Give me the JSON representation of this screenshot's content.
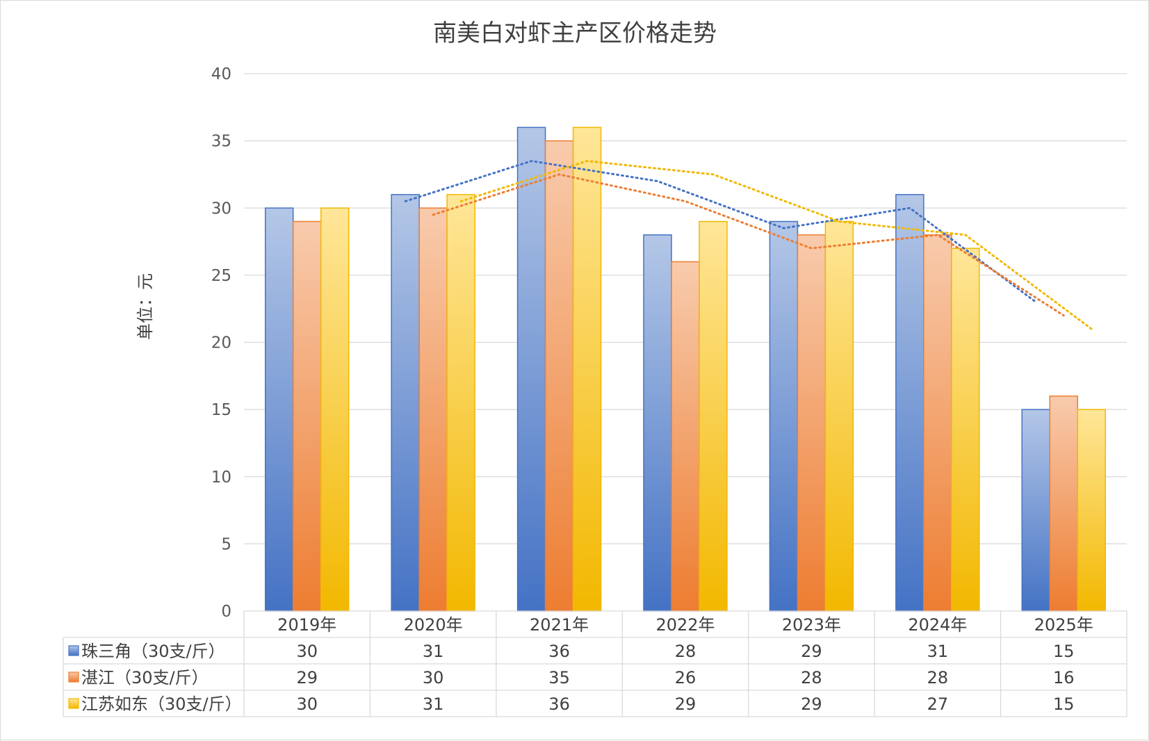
{
  "chart_data": {
    "type": "bar",
    "title": "南美白对虾主产区价格走势",
    "ylabel": "单位：元",
    "xlabel": "",
    "ylim": [
      0,
      40
    ],
    "y_ticks": [
      "0",
      "5",
      "10",
      "15",
      "20",
      "25",
      "30",
      "35",
      "40"
    ],
    "categories": [
      "2019年",
      "2020年",
      "2021年",
      "2022年",
      "2023年",
      "2024年",
      "2025年"
    ],
    "grid": true,
    "legend": "data-table-below",
    "trendlines": "2-period moving average, dotted, one per series",
    "series": [
      {
        "name": "珠三角（30支/斤）",
        "values": [
          30,
          31,
          36,
          28,
          29,
          31,
          15
        ],
        "color": "#4472C4",
        "light_color": "#B4C7E7",
        "trend_color": "#4472C4"
      },
      {
        "name": "湛江（30支/斤）",
        "values": [
          29,
          30,
          35,
          26,
          28,
          28,
          16
        ],
        "color": "#ED7D31",
        "light_color": "#F8CBAD",
        "trend_color": "#ED7D31"
      },
      {
        "name": "江苏如东（30支/斤）",
        "values": [
          30,
          31,
          36,
          29,
          29,
          27,
          15
        ],
        "color": "#F2B800",
        "light_color": "#FFE699",
        "trend_color": "#F2B800"
      }
    ]
  }
}
